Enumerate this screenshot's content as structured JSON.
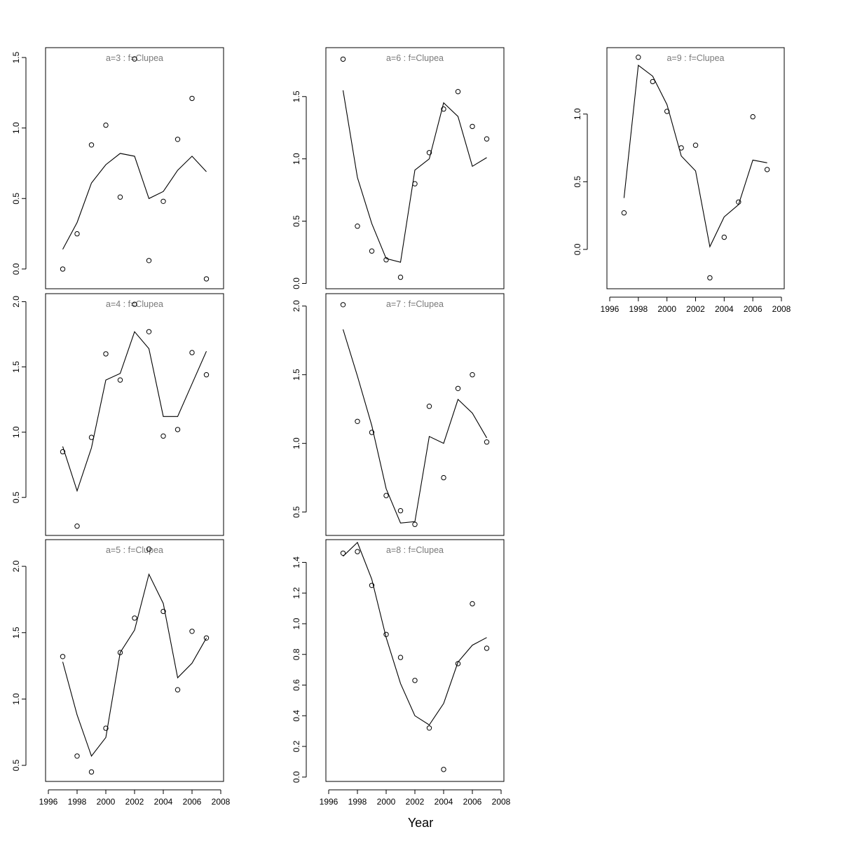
{
  "figure": {
    "xlabel": "Year"
  },
  "chart_data": [
    {
      "type": "line",
      "title": "a=3  :  f=Clupea",
      "x": [
        1997,
        1998,
        1999,
        2000,
        2001,
        2002,
        2003,
        2004,
        2005,
        2006,
        2007
      ],
      "xlim": [
        1996,
        2008
      ],
      "xticks": [],
      "ylim": [
        -0.12,
        1.55
      ],
      "yticks": [
        "0.0",
        "0.5",
        "1.0",
        "1.5"
      ],
      "series": [
        {
          "kind": "line",
          "values": [
            0.14,
            0.33,
            0.61,
            0.74,
            0.82,
            0.8,
            0.5,
            0.55,
            0.7,
            0.8,
            0.69
          ]
        },
        {
          "kind": "points",
          "values": [
            0.0,
            0.25,
            0.88,
            1.02,
            0.51,
            1.49,
            0.06,
            0.48,
            0.92,
            1.21,
            -0.07
          ]
        }
      ]
    },
    {
      "type": "line",
      "title": "a=4  :  f=Clupea",
      "x": [
        1997,
        1998,
        1999,
        2000,
        2001,
        2002,
        2003,
        2004,
        2005,
        2006,
        2007
      ],
      "xlim": [
        1996,
        2008
      ],
      "xticks": [],
      "ylim": [
        0.23,
        2.04
      ],
      "yticks": [
        "0.5",
        "1.0",
        "1.5",
        "2.0"
      ],
      "series": [
        {
          "kind": "line",
          "values": [
            0.89,
            0.55,
            0.88,
            1.4,
            1.45,
            1.77,
            1.64,
            1.12,
            1.12,
            1.37,
            1.62
          ]
        },
        {
          "kind": "points",
          "values": [
            0.85,
            0.28,
            0.96,
            1.6,
            1.4,
            1.98,
            1.77,
            0.97,
            1.02,
            1.61,
            1.44
          ]
        }
      ]
    },
    {
      "type": "line",
      "title": "a=5  :  f=Clupea",
      "x": [
        1997,
        1998,
        1999,
        2000,
        2001,
        2002,
        2003,
        2004,
        2005,
        2006,
        2007
      ],
      "xlim": [
        1996,
        2008
      ],
      "xticks": [
        "1996",
        "1998",
        "2000",
        "2002",
        "2004",
        "2006",
        "2008"
      ],
      "ylim": [
        0.4,
        2.18
      ],
      "yticks": [
        "0.5",
        "1.0",
        "1.5",
        "2.0"
      ],
      "series": [
        {
          "kind": "line",
          "values": [
            1.28,
            0.88,
            0.57,
            0.71,
            1.35,
            1.52,
            1.94,
            1.72,
            1.16,
            1.27,
            1.46
          ]
        },
        {
          "kind": "points",
          "values": [
            1.32,
            0.57,
            0.45,
            0.78,
            1.35,
            1.61,
            2.13,
            1.66,
            1.07,
            1.51,
            1.46
          ]
        }
      ]
    },
    {
      "type": "line",
      "title": "a=6  :  f=Clupea",
      "x": [
        1997,
        1998,
        1999,
        2000,
        2001,
        2002,
        2003,
        2004,
        2005,
        2006,
        2007
      ],
      "xlim": [
        1996,
        2008
      ],
      "xticks": [],
      "ylim": [
        -0.02,
        1.87
      ],
      "yticks": [
        "0.0",
        "0.5",
        "1.0",
        "1.5"
      ],
      "series": [
        {
          "kind": "line",
          "values": [
            1.55,
            0.85,
            0.48,
            0.2,
            0.17,
            0.91,
            1.0,
            1.45,
            1.34,
            0.94,
            1.01
          ]
        },
        {
          "kind": "points",
          "values": [
            1.8,
            0.46,
            0.26,
            0.19,
            0.05,
            0.8,
            1.05,
            1.4,
            1.54,
            1.26,
            1.16
          ]
        }
      ]
    },
    {
      "type": "line",
      "title": "a=7  :  f=Clupea",
      "x": [
        1997,
        1998,
        1999,
        2000,
        2001,
        2002,
        2003,
        2004,
        2005,
        2006,
        2007
      ],
      "xlim": [
        1996,
        2008
      ],
      "xticks": [],
      "ylim": [
        0.35,
        2.07
      ],
      "yticks": [
        "0.5",
        "1.0",
        "1.5",
        "2.0"
      ],
      "series": [
        {
          "kind": "line",
          "values": [
            1.83,
            1.49,
            1.13,
            0.67,
            0.42,
            0.43,
            1.05,
            1.0,
            1.32,
            1.22,
            1.04
          ]
        },
        {
          "kind": "points",
          "values": [
            2.01,
            1.16,
            1.08,
            0.62,
            0.51,
            0.41,
            1.27,
            0.75,
            1.4,
            1.5,
            1.01
          ]
        }
      ]
    },
    {
      "type": "line",
      "title": "a=8  :  f=Clupea",
      "x": [
        1997,
        1998,
        1999,
        2000,
        2001,
        2002,
        2003,
        2004,
        2005,
        2006,
        2007
      ],
      "xlim": [
        1996,
        2008
      ],
      "xticks": [
        "1996",
        "1998",
        "2000",
        "2002",
        "2004",
        "2006",
        "2008"
      ],
      "ylim": [
        -0.01,
        1.53
      ],
      "yticks": [
        "0.0",
        "0.2",
        "0.4",
        "0.6",
        "0.8",
        "1.0",
        "1.2",
        "1.4"
      ],
      "series": [
        {
          "kind": "line",
          "values": [
            1.44,
            1.53,
            1.29,
            0.91,
            0.61,
            0.4,
            0.34,
            0.48,
            0.75,
            0.86,
            0.91
          ]
        },
        {
          "kind": "points",
          "values": [
            1.46,
            1.47,
            1.25,
            0.93,
            0.78,
            0.63,
            0.32,
            0.05,
            0.74,
            1.13,
            0.84
          ]
        }
      ]
    },
    {
      "type": "line",
      "title": "a=9  :  f=Clupea",
      "x": [
        1997,
        1998,
        1999,
        2000,
        2001,
        2002,
        2003,
        2004,
        2005,
        2006,
        2007
      ],
      "xlim": [
        1996,
        2008
      ],
      "xticks": [
        "1996",
        "1998",
        "2000",
        "2002",
        "2004",
        "2006",
        "2008"
      ],
      "ylim": [
        -0.27,
        1.47
      ],
      "yticks": [
        "0.0",
        "0.5",
        "1.0"
      ],
      "series": [
        {
          "kind": "line",
          "values": [
            0.38,
            1.36,
            1.28,
            1.07,
            0.69,
            0.58,
            0.02,
            0.24,
            0.33,
            0.66,
            0.64
          ]
        },
        {
          "kind": "points",
          "values": [
            0.27,
            1.42,
            1.24,
            1.02,
            0.75,
            0.77,
            -0.21,
            0.09,
            0.35,
            0.98,
            0.59
          ]
        }
      ]
    }
  ]
}
